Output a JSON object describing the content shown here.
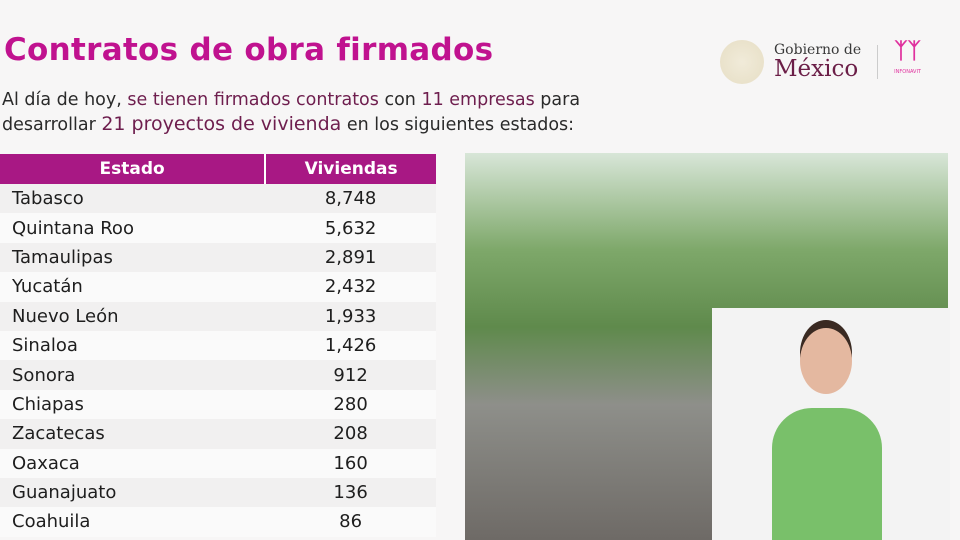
{
  "header": {
    "title": "Contratos de obra firmados",
    "subtitle_parts": [
      "Al día de hoy, ",
      "se tienen firmados contratos",
      " con ",
      "11 empresas",
      " para",
      "desarrollar ",
      "21 proyectos de vivienda",
      " en los siguientes estados:"
    ]
  },
  "logos": {
    "gobierno_line1": "Gobierno de",
    "gobierno_line2": "México",
    "infonavit": "INFONAVIT"
  },
  "colors": {
    "title": "#c0128f",
    "table_header": "#a81884",
    "highlight": "#6e1e4e"
  },
  "table": {
    "columns": [
      "Estado",
      "Viviendas"
    ],
    "rows": [
      [
        "Tabasco",
        "8,748"
      ],
      [
        "Quintana Roo",
        "5,632"
      ],
      [
        "Tamaulipas",
        "2,891"
      ],
      [
        "Yucatán",
        "2,432"
      ],
      [
        "Nuevo León",
        "1,933"
      ],
      [
        "Sinaloa",
        "1,426"
      ],
      [
        "Sonora",
        "912"
      ],
      [
        "Chiapas",
        "280"
      ],
      [
        "Zacatecas",
        "208"
      ],
      [
        "Oaxaca",
        "160"
      ],
      [
        "Guanajuato",
        "136"
      ],
      [
        "Coahuila",
        "86"
      ]
    ]
  }
}
